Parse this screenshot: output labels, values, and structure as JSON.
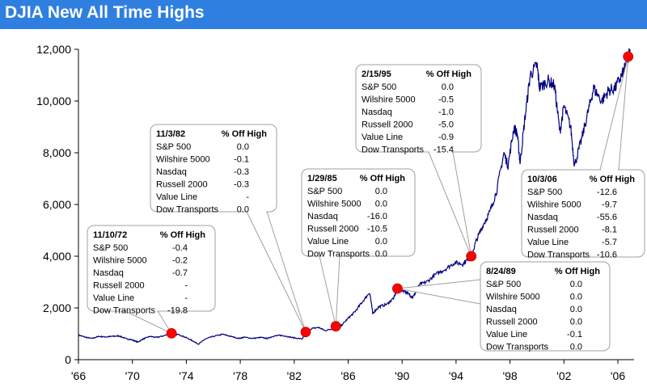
{
  "title": "DJIA New All Time Highs",
  "colors": {
    "title_bg": "#2f7fe0",
    "line": "#000080",
    "marker": "#ff0000",
    "callout_border": "#a0a0a0"
  },
  "chart_data": {
    "type": "line",
    "title": "DJIA New All Time Highs",
    "xlabel": "",
    "ylabel": "",
    "xlim": [
      1966,
      2007.2
    ],
    "ylim": [
      0,
      12000
    ],
    "grid": false,
    "x_ticks": [
      "'66",
      "'70",
      "'74",
      "'78",
      "'82",
      "'86",
      "'90",
      "'94",
      "'98",
      "'02",
      "'06"
    ],
    "y_ticks": [
      "0",
      "2,000",
      "4,000",
      "6,000",
      "8,000",
      "10,000",
      "12,000"
    ],
    "series": [
      {
        "x": [
          1966.0,
          1966.5,
          1967.0,
          1967.5,
          1968.0,
          1968.5,
          1969.0,
          1969.5,
          1970.0,
          1970.4,
          1970.8,
          1971.3,
          1971.8,
          1972.3,
          1972.9,
          1973.5,
          1974.0,
          1974.5,
          1974.9,
          1975.4,
          1976.0,
          1976.7,
          1977.3,
          1977.9,
          1978.3,
          1978.9,
          1979.5,
          1980.0,
          1980.4,
          1980.9,
          1981.3,
          1981.9,
          1982.6,
          1982.85,
          1983.3,
          1983.8,
          1984.3,
          1984.8,
          1985.1,
          1985.5,
          1986.0,
          1986.5,
          1987.0,
          1987.6,
          1987.82,
          1988.3,
          1988.9,
          1989.4,
          1989.65,
          1990.2,
          1990.55,
          1990.8,
          1991.3,
          1991.8,
          1992.5,
          1993.2,
          1993.9,
          1994.5,
          1994.9,
          1995.13,
          1995.5,
          1996.0,
          1996.5,
          1997.0,
          1997.55,
          1997.85,
          1998.3,
          1998.55,
          1998.75,
          1999.1,
          1999.5,
          2000.0,
          2000.2,
          2000.8,
          2001.3,
          2001.7,
          2002.0,
          2002.5,
          2002.78,
          2003.3,
          2003.8,
          2004.2,
          2004.8,
          2005.3,
          2005.8,
          2006.3,
          2006.55,
          2006.76,
          2006.9
        ],
        "y": [
          950,
          870,
          820,
          900,
          880,
          900,
          920,
          820,
          760,
          680,
          800,
          900,
          860,
          920,
          1020,
          960,
          850,
          720,
          600,
          800,
          900,
          980,
          900,
          820,
          870,
          820,
          860,
          820,
          900,
          940,
          920,
          850,
          800,
          1070,
          1200,
          1250,
          1120,
          1200,
          1290,
          1320,
          1600,
          1850,
          2200,
          2600,
          1800,
          2050,
          2150,
          2400,
          2750,
          2650,
          2500,
          2400,
          2900,
          3000,
          3300,
          3500,
          3750,
          3700,
          3900,
          4000,
          4600,
          5200,
          5700,
          6500,
          8000,
          7500,
          9000,
          8700,
          7600,
          9300,
          11000,
          11400,
          10500,
          10800,
          10600,
          8800,
          9800,
          9000,
          7500,
          8500,
          9600,
          10500,
          10000,
          10400,
          10500,
          11000,
          11300,
          11720,
          12000
        ]
      }
    ],
    "markers": [
      {
        "x": 1972.9,
        "y": 1020,
        "date": "11/10/72"
      },
      {
        "x": 1982.85,
        "y": 1070,
        "date": "11/3/82"
      },
      {
        "x": 1985.08,
        "y": 1290,
        "date": "1/29/85"
      },
      {
        "x": 1989.65,
        "y": 2750,
        "date": "8/24/89"
      },
      {
        "x": 1995.13,
        "y": 4000,
        "date": "2/15/95"
      },
      {
        "x": 2006.76,
        "y": 11720,
        "date": "10/3/06"
      }
    ],
    "callouts": [
      {
        "id": "c72",
        "date": "11/10/72",
        "header": "% Off High",
        "rows": [
          [
            "S&P 500",
            "-0.4"
          ],
          [
            "Wilshire 5000",
            "-0.2"
          ],
          [
            "Nasdaq",
            "-0.7"
          ],
          [
            "Russell 2000",
            "-"
          ],
          [
            "Value Line",
            "-"
          ],
          [
            "Dow Transports",
            "-19.8"
          ]
        ]
      },
      {
        "id": "c82",
        "date": "11/3/82",
        "header": "% Off High",
        "rows": [
          [
            "S&P 500",
            "0.0"
          ],
          [
            "Wilshire 5000",
            "-0.1"
          ],
          [
            "Nasdaq",
            "-0.3"
          ],
          [
            "Russell 2000",
            "-0.3"
          ],
          [
            "Value Line",
            "-"
          ],
          [
            "Dow Transports",
            "0.0"
          ]
        ]
      },
      {
        "id": "c85",
        "date": "1/29/85",
        "header": "% Off High",
        "rows": [
          [
            "S&P 500",
            "0.0"
          ],
          [
            "Wilshire 5000",
            "0.0"
          ],
          [
            "Nasdaq",
            "-16.0"
          ],
          [
            "Russell 2000",
            "-10.5"
          ],
          [
            "Value Line",
            "0.0"
          ],
          [
            "Dow Transports",
            "0.0"
          ]
        ]
      },
      {
        "id": "c89",
        "date": "8/24/89",
        "header": "% Off High",
        "rows": [
          [
            "S&P 500",
            "0.0"
          ],
          [
            "Wilshire 5000",
            "0.0"
          ],
          [
            "Nasdaq",
            "0.0"
          ],
          [
            "Russell 2000",
            "0.0"
          ],
          [
            "Value Line",
            "-0.1"
          ],
          [
            "Dow Transports",
            "0.0"
          ]
        ]
      },
      {
        "id": "c95",
        "date": "2/15/95",
        "header": "% Off High",
        "rows": [
          [
            "S&P 500",
            "0.0"
          ],
          [
            "Wilshire 5000",
            "-0.5"
          ],
          [
            "Nasdaq",
            "-1.0"
          ],
          [
            "Russell 2000",
            "-5.0"
          ],
          [
            "Value Line",
            "-0.9"
          ],
          [
            "Dow Transports",
            "-15.4"
          ]
        ]
      },
      {
        "id": "c06",
        "date": "10/3/06",
        "header": "% Off High",
        "rows": [
          [
            "S&P 500",
            "-12.6"
          ],
          [
            "Wilshire 5000",
            "-9.7"
          ],
          [
            "Nasdaq",
            "-55.6"
          ],
          [
            "Russell 2000",
            "-8.1"
          ],
          [
            "Value Line",
            "-5.7"
          ],
          [
            "Dow Transports",
            "-10.6"
          ]
        ]
      }
    ]
  }
}
